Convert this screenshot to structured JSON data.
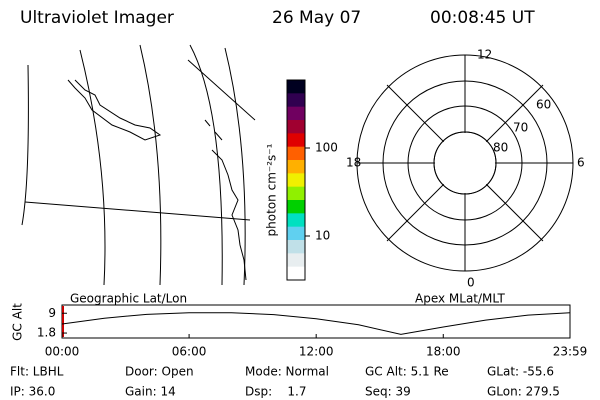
{
  "header": {
    "title": "Ultraviolet Imager",
    "date": "26 May 07",
    "time": "00:08:45 UT"
  },
  "colorbar": {
    "label": "photon cm⁻²s⁻¹",
    "ticks": [
      "100",
      "10"
    ]
  },
  "polar": {
    "top": "12",
    "right": "6",
    "left": "18",
    "bottom": "0",
    "lat_labels": [
      "60",
      "70",
      "80"
    ]
  },
  "altitude_plot": {
    "type": "line",
    "y_label": "GC Alt",
    "left_title": "Geographic Lat/Lon",
    "right_title": "Apex MLat/MLT",
    "x": [
      0,
      2,
      4,
      6,
      8,
      10,
      12,
      14,
      16,
      18,
      20,
      22,
      23.983
    ],
    "values": [
      5.1,
      7.2,
      8.6,
      9.2,
      9.2,
      8.5,
      7.0,
      4.8,
      1.3,
      4.0,
      6.5,
      8.3,
      9.2
    ],
    "xlim": [
      0,
      23.983
    ],
    "ylim": [
      0,
      12
    ],
    "xticks": [
      {
        "value": 0,
        "label": "00:00"
      },
      {
        "value": 6,
        "label": "06:00"
      },
      {
        "value": 12,
        "label": "12:00"
      },
      {
        "value": 18,
        "label": "18:00"
      },
      {
        "value": 23.983,
        "label": "23:59"
      }
    ],
    "yticks": [
      9.0,
      1.8
    ]
  },
  "footer": {
    "rows": [
      [
        "Flt: LBHL",
        "Door: Open",
        "Mode: Normal",
        "GC Alt: 5.1 Re",
        "GLat: -55.6"
      ],
      [
        "IP: 36.0",
        "Gain: 14",
        "Dsp:    1.7",
        "Seq: 39",
        "GLon: 279.5"
      ]
    ]
  }
}
